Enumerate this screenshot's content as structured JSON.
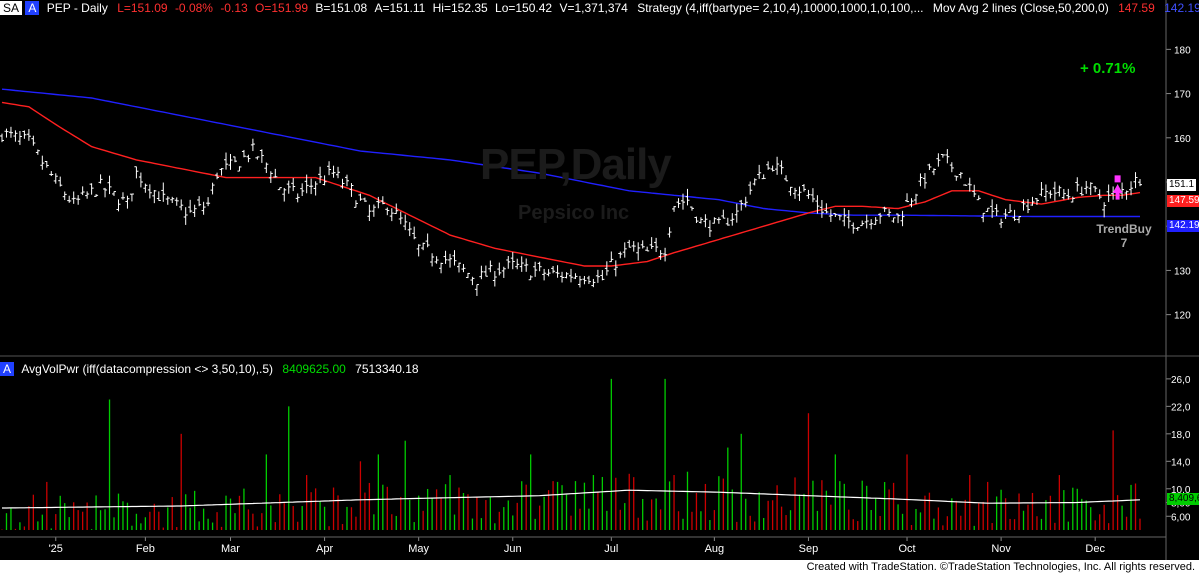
{
  "header": {
    "symbol_badge": "SA",
    "alpha_badge": "A",
    "title": "PEP - Daily",
    "last": "L=151.09",
    "change_pct": "-0.08%",
    "change": "-0.13",
    "open": "O=151.99",
    "bid": "B=151.08",
    "ask": "A=151.11",
    "high": "Hi=152.35",
    "low": "Lo=150.42",
    "volume": "V=1,371,374",
    "strategy": "Strategy (4,iff(bartype= 2,10,4),10000,1000,1,0,100,...",
    "ma_label": "Mov Avg 2 lines (Close,50,200,0)",
    "ma50_value": "147.59",
    "ma200_value": "142.19"
  },
  "watermark": {
    "symbol": "PEP,Daily",
    "name": "Pepsico Inc"
  },
  "annotations": {
    "pct_change": "+ 0.71%",
    "signal": "TrendBuy",
    "signal_count": "7"
  },
  "price_tags": {
    "last": "151.1",
    "ma50": "147.59",
    "ma200": "142.19"
  },
  "volume_panel": {
    "alpha_badge": "A",
    "label": "AvgVolPwr (iff(datacompression <> 3,50,10),.5)",
    "value1": "8409625.00",
    "value2": "7513340.18",
    "axis_tag": "8,409,6"
  },
  "footer": "Created with TradeStation. ©TradeStation Technologies, Inc. All rights reserved.",
  "colors": {
    "bars": "#ffffff",
    "ma50": "#ff2020",
    "ma200": "#2020ff",
    "vol_up": "#00cc00",
    "vol_down": "#cc0000",
    "vol_avg": "#ffffff",
    "signal": "#ff33ff",
    "pct": "#00dd00"
  },
  "chart_data": [
    {
      "type": "ohlc",
      "title": "PEP - Daily",
      "y_ticks": [
        120,
        130,
        140,
        150,
        160,
        170,
        180
      ],
      "ylim": [
        112,
        188
      ],
      "x_labels": [
        "'25",
        "Feb",
        "Mar",
        "Apr",
        "May",
        "Jun",
        "Jul",
        "Aug",
        "Sep",
        "Oct",
        "Nov",
        "Dec"
      ],
      "x_label_index": [
        12,
        32,
        51,
        72,
        93,
        114,
        136,
        159,
        180,
        202,
        223,
        244
      ],
      "n_bars": 255,
      "close_anchors": [
        [
          0,
          161
        ],
        [
          6,
          159
        ],
        [
          12,
          150
        ],
        [
          16,
          145
        ],
        [
          22,
          149
        ],
        [
          28,
          145
        ],
        [
          30,
          152
        ],
        [
          36,
          146
        ],
        [
          42,
          143
        ],
        [
          46,
          145
        ],
        [
          48,
          152
        ],
        [
          52,
          154
        ],
        [
          56,
          157
        ],
        [
          60,
          153
        ],
        [
          62,
          149
        ],
        [
          66,
          147
        ],
        [
          70,
          150
        ],
        [
          74,
          152
        ],
        [
          78,
          148
        ],
        [
          82,
          143
        ],
        [
          86,
          145
        ],
        [
          90,
          140
        ],
        [
          93,
          135
        ],
        [
          96,
          134
        ],
        [
          100,
          132
        ],
        [
          106,
          128
        ],
        [
          110,
          130
        ],
        [
          114,
          131
        ],
        [
          118,
          130
        ],
        [
          124,
          129
        ],
        [
          130,
          129
        ],
        [
          134,
          128
        ],
        [
          136,
          131
        ],
        [
          140,
          135
        ],
        [
          144,
          134
        ],
        [
          148,
          135
        ],
        [
          150,
          145
        ],
        [
          153,
          146
        ],
        [
          156,
          141
        ],
        [
          160,
          140
        ],
        [
          164,
          143
        ],
        [
          168,
          150
        ],
        [
          172,
          154
        ],
        [
          176,
          150
        ],
        [
          180,
          147
        ],
        [
          184,
          143
        ],
        [
          188,
          141
        ],
        [
          192,
          141
        ],
        [
          196,
          143
        ],
        [
          200,
          142
        ],
        [
          202,
          145
        ],
        [
          206,
          151
        ],
        [
          210,
          155
        ],
        [
          214,
          152
        ],
        [
          218,
          145
        ],
        [
          222,
          142
        ],
        [
          226,
          143
        ],
        [
          230,
          146
        ],
        [
          234,
          148
        ],
        [
          238,
          147
        ],
        [
          242,
          149
        ],
        [
          246,
          146
        ],
        [
          250,
          148
        ],
        [
          254,
          151
        ]
      ],
      "ma50_anchors": [
        [
          0,
          168
        ],
        [
          6,
          167
        ],
        [
          12,
          163
        ],
        [
          20,
          158
        ],
        [
          30,
          155
        ],
        [
          40,
          153
        ],
        [
          50,
          151
        ],
        [
          60,
          151
        ],
        [
          70,
          151
        ],
        [
          76,
          149
        ],
        [
          82,
          147
        ],
        [
          90,
          143
        ],
        [
          100,
          138
        ],
        [
          110,
          135
        ],
        [
          120,
          133
        ],
        [
          130,
          131
        ],
        [
          136,
          131
        ],
        [
          144,
          132
        ],
        [
          150,
          134
        ],
        [
          160,
          137
        ],
        [
          170,
          140
        ],
        [
          180,
          143
        ],
        [
          186,
          144.5
        ],
        [
          192,
          144.5
        ],
        [
          200,
          144
        ],
        [
          206,
          145.5
        ],
        [
          212,
          148
        ],
        [
          218,
          148
        ],
        [
          224,
          146
        ],
        [
          232,
          145
        ],
        [
          240,
          146.5
        ],
        [
          246,
          147
        ],
        [
          250,
          147
        ],
        [
          254,
          147.6
        ]
      ],
      "ma200_anchors": [
        [
          0,
          171
        ],
        [
          20,
          169
        ],
        [
          40,
          165
        ],
        [
          60,
          161
        ],
        [
          80,
          157
        ],
        [
          100,
          155
        ],
        [
          120,
          152
        ],
        [
          140,
          148
        ],
        [
          160,
          146
        ],
        [
          170,
          144
        ],
        [
          180,
          143
        ],
        [
          190,
          142.5
        ],
        [
          200,
          142.5
        ],
        [
          210,
          142.4
        ],
        [
          220,
          142.3
        ],
        [
          230,
          142.2
        ],
        [
          240,
          142.2
        ],
        [
          246,
          142.2
        ],
        [
          254,
          142.2
        ]
      ],
      "ma50_last": 147.59,
      "ma200_last": 142.19,
      "last_close": 151.1,
      "signal": {
        "label": "TrendBuy",
        "count": 7,
        "bar": 249
      }
    },
    {
      "type": "bar",
      "title": "AvgVolPwr (iff(datacompression <> 3,50,10),.5)",
      "y_ticks": [
        "6,00",
        "8,00",
        "10,0",
        "14,0",
        "18,0",
        "22,0",
        "26,0"
      ],
      "y_tick_values": [
        6,
        8,
        10,
        14,
        18,
        22,
        26
      ],
      "ylim": [
        4,
        27
      ],
      "units": "millions of shares",
      "avg_anchors": [
        [
          0,
          7.2
        ],
        [
          40,
          7.5
        ],
        [
          80,
          8.4
        ],
        [
          120,
          9.0
        ],
        [
          140,
          9.8
        ],
        [
          160,
          9.5
        ],
        [
          180,
          9.0
        ],
        [
          200,
          8.5
        ],
        [
          220,
          7.9
        ],
        [
          240,
          8.0
        ],
        [
          254,
          8.4
        ]
      ],
      "avg_last": 8.409625,
      "spikes": [
        [
          10,
          11
        ],
        [
          24,
          23
        ],
        [
          40,
          18
        ],
        [
          50,
          9
        ],
        [
          59,
          15
        ],
        [
          64,
          22
        ],
        [
          68,
          12
        ],
        [
          80,
          14
        ],
        [
          84,
          15
        ],
        [
          90,
          17
        ],
        [
          100,
          12
        ],
        [
          118,
          15
        ],
        [
          124,
          11
        ],
        [
          132,
          12
        ],
        [
          136,
          26
        ],
        [
          148,
          26
        ],
        [
          162,
          16
        ],
        [
          165,
          18
        ],
        [
          180,
          21
        ],
        [
          186,
          15
        ],
        [
          202,
          15
        ],
        [
          216,
          12
        ],
        [
          220,
          11
        ],
        [
          236,
          12
        ],
        [
          240,
          10
        ],
        [
          248,
          18.5
        ]
      ]
    }
  ]
}
